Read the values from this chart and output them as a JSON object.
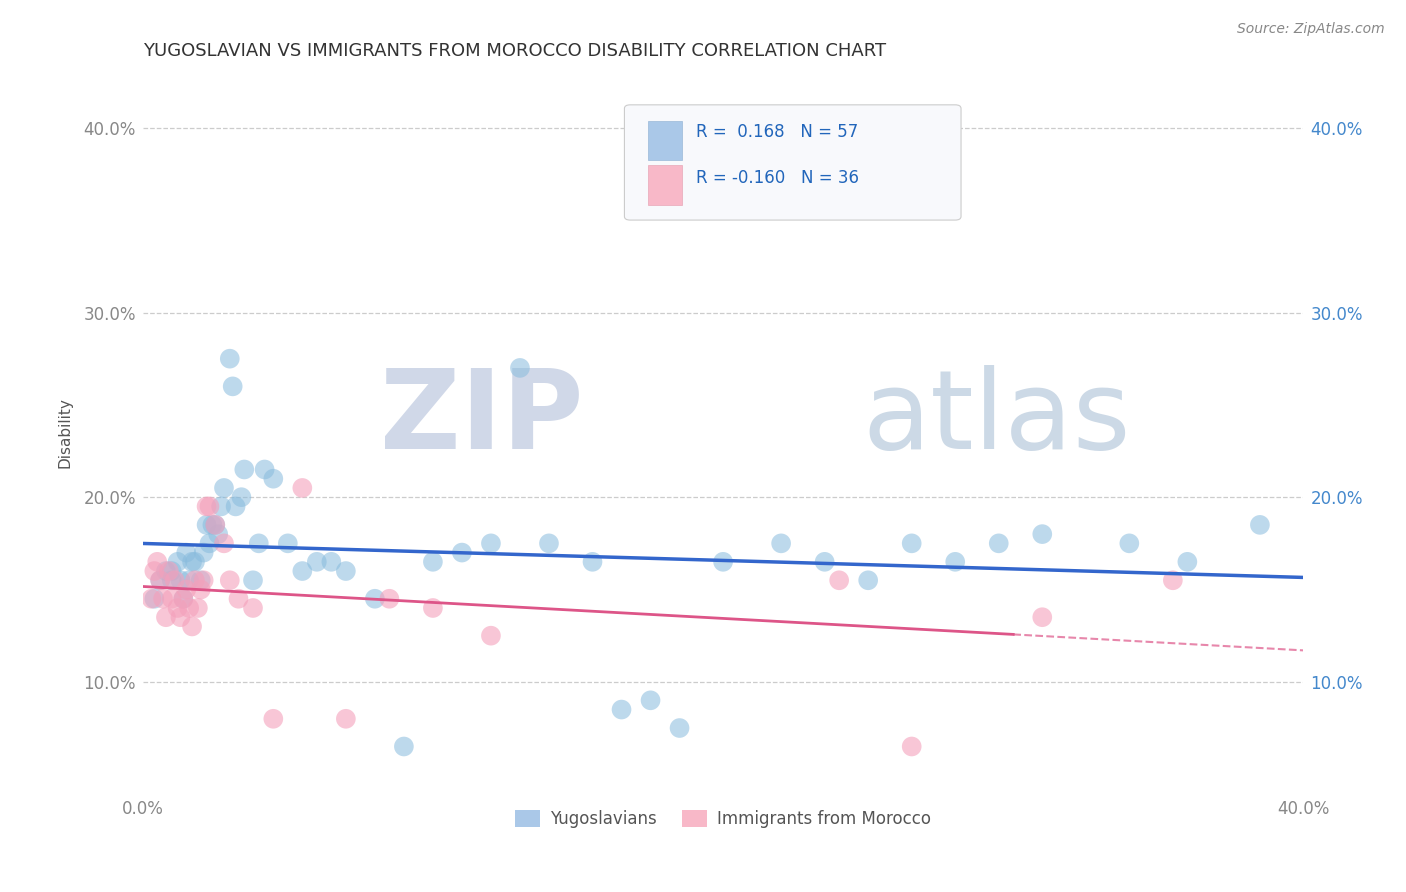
{
  "title": "YUGOSLAVIAN VS IMMIGRANTS FROM MOROCCO DISABILITY CORRELATION CHART",
  "source": "Source: ZipAtlas.com",
  "ylabel": "Disability",
  "xlim": [
    0.0,
    0.4
  ],
  "ylim": [
    0.04,
    0.43
  ],
  "yticks": [
    0.1,
    0.2,
    0.3,
    0.4
  ],
  "ytick_labels": [
    "10.0%",
    "20.0%",
    "30.0%",
    "40.0%"
  ],
  "xticks": [
    0.0,
    0.1,
    0.2,
    0.3,
    0.4
  ],
  "blue_scatter_color": "#88bbdd",
  "pink_scatter_color": "#f4a0bb",
  "blue_line_color": "#3366cc",
  "pink_line_color": "#dd5588",
  "background_color": "#ffffff",
  "blue_x": [
    0.004,
    0.006,
    0.008,
    0.01,
    0.01,
    0.012,
    0.013,
    0.014,
    0.015,
    0.016,
    0.017,
    0.018,
    0.02,
    0.021,
    0.022,
    0.023,
    0.024,
    0.025,
    0.026,
    0.027,
    0.028,
    0.03,
    0.031,
    0.032,
    0.034,
    0.035,
    0.038,
    0.04,
    0.042,
    0.045,
    0.05,
    0.055,
    0.06,
    0.065,
    0.07,
    0.08,
    0.09,
    0.1,
    0.11,
    0.12,
    0.13,
    0.14,
    0.155,
    0.165,
    0.175,
    0.185,
    0.2,
    0.22,
    0.235,
    0.25,
    0.265,
    0.28,
    0.295,
    0.31,
    0.34,
    0.36,
    0.385
  ],
  "blue_y": [
    0.145,
    0.155,
    0.16,
    0.16,
    0.155,
    0.165,
    0.155,
    0.145,
    0.17,
    0.155,
    0.165,
    0.165,
    0.155,
    0.17,
    0.185,
    0.175,
    0.185,
    0.185,
    0.18,
    0.195,
    0.205,
    0.275,
    0.26,
    0.195,
    0.2,
    0.215,
    0.155,
    0.175,
    0.215,
    0.21,
    0.175,
    0.16,
    0.165,
    0.165,
    0.16,
    0.145,
    0.065,
    0.165,
    0.17,
    0.175,
    0.27,
    0.175,
    0.165,
    0.085,
    0.09,
    0.075,
    0.165,
    0.175,
    0.165,
    0.155,
    0.175,
    0.165,
    0.175,
    0.18,
    0.175,
    0.165,
    0.185
  ],
  "pink_x": [
    0.003,
    0.004,
    0.005,
    0.006,
    0.007,
    0.008,
    0.009,
    0.01,
    0.011,
    0.012,
    0.013,
    0.014,
    0.015,
    0.016,
    0.017,
    0.018,
    0.019,
    0.02,
    0.021,
    0.022,
    0.023,
    0.025,
    0.028,
    0.03,
    0.033,
    0.038,
    0.045,
    0.055,
    0.07,
    0.085,
    0.1,
    0.12,
    0.24,
    0.265,
    0.31,
    0.355
  ],
  "pink_y": [
    0.145,
    0.16,
    0.165,
    0.155,
    0.145,
    0.135,
    0.16,
    0.145,
    0.155,
    0.14,
    0.135,
    0.145,
    0.15,
    0.14,
    0.13,
    0.155,
    0.14,
    0.15,
    0.155,
    0.195,
    0.195,
    0.185,
    0.175,
    0.155,
    0.145,
    0.14,
    0.08,
    0.205,
    0.08,
    0.145,
    0.14,
    0.125,
    0.155,
    0.065,
    0.135,
    0.155
  ],
  "legend_blue_label_R": "R =  0.168",
  "legend_blue_label_N": "N = 57",
  "legend_pink_label_R": "R = -0.160",
  "legend_pink_label_N": "N = 36"
}
